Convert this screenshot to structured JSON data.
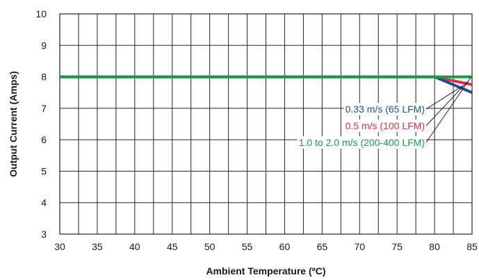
{
  "chart_data": {
    "type": "line",
    "title": "",
    "xlabel": "Ambient Temperature (ºC)",
    "ylabel": "Output Current (Amps)",
    "xlim": [
      30,
      85
    ],
    "ylim": [
      3,
      10
    ],
    "xticks": [
      "30",
      "35",
      "40",
      "45",
      "50",
      "55",
      "60",
      "65",
      "70",
      "75",
      "80",
      "85"
    ],
    "yticks": [
      "3",
      "4",
      "5",
      "6",
      "7",
      "8",
      "9",
      "10"
    ],
    "grid": true,
    "series": [
      {
        "name": "0.33 m/s (65 LFM)",
        "color": "#1f4e8a",
        "x": [
          30,
          80,
          85
        ],
        "y": [
          8,
          8,
          7.5
        ]
      },
      {
        "name": "0.5 m/s (100 LFM)",
        "color": "#e0304a",
        "x": [
          30,
          80,
          85
        ],
        "y": [
          8,
          8,
          7.75
        ]
      },
      {
        "name": "1.0 to 2.0 m/s (200-400 LFM)",
        "color": "#1a9a46",
        "x": [
          30,
          85
        ],
        "y": [
          8,
          8
        ]
      }
    ]
  }
}
